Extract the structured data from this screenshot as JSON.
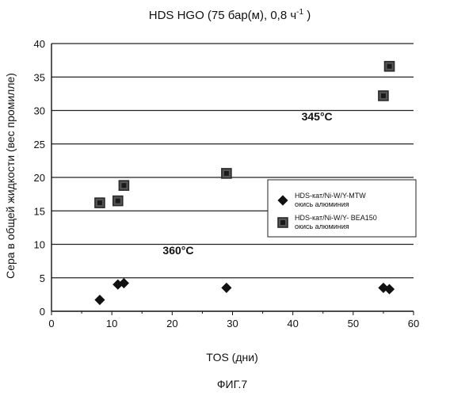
{
  "chart_data": {
    "type": "scatter",
    "title": "HDS HGO (75 бар(м), 0,8 ч",
    "title_superscript": "-1",
    "title_tail": " )",
    "xlabel": "TOS (дни)",
    "ylabel": "Сера в общей жидкости (вес промилле)",
    "xlim": [
      0,
      60
    ],
    "ylim": [
      0,
      40
    ],
    "xticks": [
      "0",
      "10",
      "20",
      "30",
      "40",
      "50",
      "60"
    ],
    "yticks": [
      "0",
      "5",
      "10",
      "15",
      "20",
      "25",
      "30",
      "35",
      "40"
    ],
    "grid": "horizontal",
    "legend_position": "right",
    "series": [
      {
        "name": "HDS-кат/Ni-W/Y-MTW окись алюминия",
        "name_lines": [
          "HDS-кат/Ni-W/Y-MTW",
          "окись алюминия"
        ],
        "marker": "diamond",
        "color": "#111111",
        "x": [
          8,
          11,
          12,
          29,
          55,
          56
        ],
        "y": [
          1.7,
          4.0,
          4.2,
          3.5,
          3.5,
          3.3
        ]
      },
      {
        "name": "HDS-кат/Ni-W/Y- BEA150 окись алюминия",
        "name_lines": [
          "HDS-кат/Ni-W/Y- BEA150",
          "окись алюминия"
        ],
        "marker": "square",
        "color": "#2a2a2a",
        "x": [
          8,
          11,
          12,
          29,
          55,
          56
        ],
        "y": [
          16.2,
          16.5,
          18.8,
          20.6,
          32.2,
          36.6
        ]
      }
    ],
    "annotations": [
      {
        "text": "345°C",
        "x": 44,
        "y": 28.5
      },
      {
        "text": "360°C",
        "x": 21,
        "y": 8.5
      }
    ]
  },
  "caption": "ФИГ.7"
}
